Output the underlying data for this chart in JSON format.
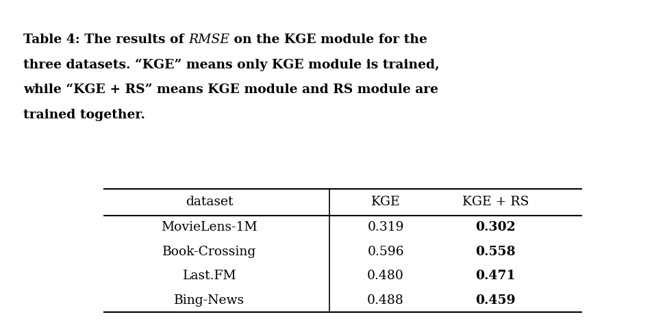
{
  "title_line1_parts": [
    {
      "text": "Table 4: The results of ",
      "weight": "bold",
      "style": "normal"
    },
    {
      "text": "RMSE",
      "weight": "normal",
      "style": "italic"
    },
    {
      "text": " on the KGE module for the",
      "weight": "bold",
      "style": "normal"
    }
  ],
  "title_line2": "three datasets. “KGE” means only KGE module is trained,",
  "title_line3": "while “KGE + RS” means KGE module and RS module are",
  "title_line4": "trained together.",
  "columns": [
    "dataset",
    "KGE",
    "KGE + RS"
  ],
  "rows": [
    {
      "dataset": "MovieLens-1M",
      "KGE": "0.319",
      "KGE_RS": "0.302",
      "KGE_RS_bold": true
    },
    {
      "dataset": "Book-Crossing",
      "KGE": "0.596",
      "KGE_RS": "0.558",
      "KGE_RS_bold": true
    },
    {
      "dataset": "Last.FM",
      "KGE": "0.480",
      "KGE_RS": "0.471",
      "KGE_RS_bold": true
    },
    {
      "dataset": "Bing-News",
      "KGE": "0.488",
      "KGE_RS": "0.459",
      "KGE_RS_bold": true
    }
  ],
  "bg_color": "#ffffff",
  "text_color": "#000000",
  "font_family": "DejaVu Serif",
  "title_fontsize": 13.5,
  "table_fontsize": 13.5,
  "figsize": [
    9.71,
    4.88
  ],
  "dpi": 100
}
